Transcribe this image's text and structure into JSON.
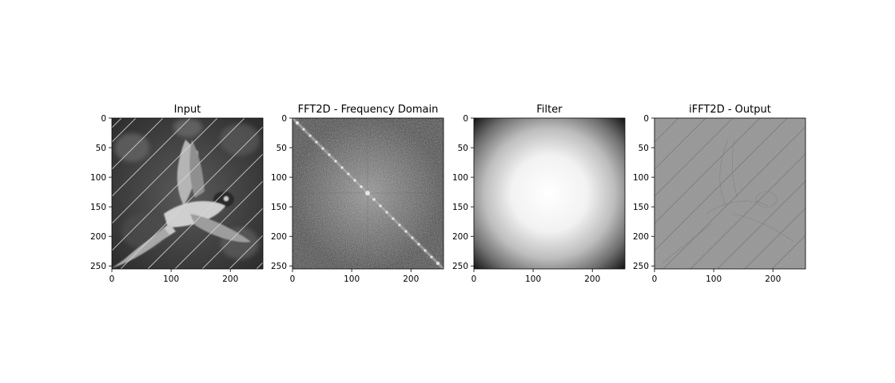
{
  "figure": {
    "panels": [
      {
        "title": "Input",
        "image": "noisy-parrot-photo-with-diagonal-stripes"
      },
      {
        "title": "FFT2D - Frequency Domain",
        "image": "log-magnitude-spectrum-with-diagonal-peaks"
      },
      {
        "title": "Filter",
        "image": "radial-lowpass-gaussian-filter"
      },
      {
        "title": "iFFT2D - Output",
        "image": "high-pass-edge-residual"
      }
    ]
  },
  "chart_data": [
    {
      "type": "heatmap",
      "title": "Input",
      "colormap": "gray",
      "xlim": [
        0,
        255
      ],
      "ylim": [
        255,
        0
      ],
      "x_ticks": [
        0,
        100,
        200
      ],
      "y_ticks": [
        0,
        50,
        100,
        150,
        200,
        250
      ],
      "grid": false
    },
    {
      "type": "heatmap",
      "title": "FFT2D - Frequency Domain",
      "colormap": "gray",
      "xlim": [
        0,
        255
      ],
      "ylim": [
        255,
        0
      ],
      "x_ticks": [
        0,
        100,
        200
      ],
      "y_ticks": [
        0,
        50,
        100,
        150,
        200,
        250
      ],
      "grid": false
    },
    {
      "type": "heatmap",
      "title": "Filter",
      "colormap": "gray",
      "xlim": [
        0,
        255
      ],
      "ylim": [
        255,
        0
      ],
      "x_ticks": [
        0,
        100,
        200
      ],
      "y_ticks": [
        0,
        50,
        100,
        150,
        200,
        250
      ],
      "grid": false
    },
    {
      "type": "heatmap",
      "title": "iFFT2D - Output",
      "colormap": "gray",
      "xlim": [
        0,
        255
      ],
      "ylim": [
        255,
        0
      ],
      "x_ticks": [
        0,
        100,
        200
      ],
      "y_ticks": [
        0,
        50,
        100,
        150,
        200,
        250
      ],
      "grid": false
    }
  ]
}
